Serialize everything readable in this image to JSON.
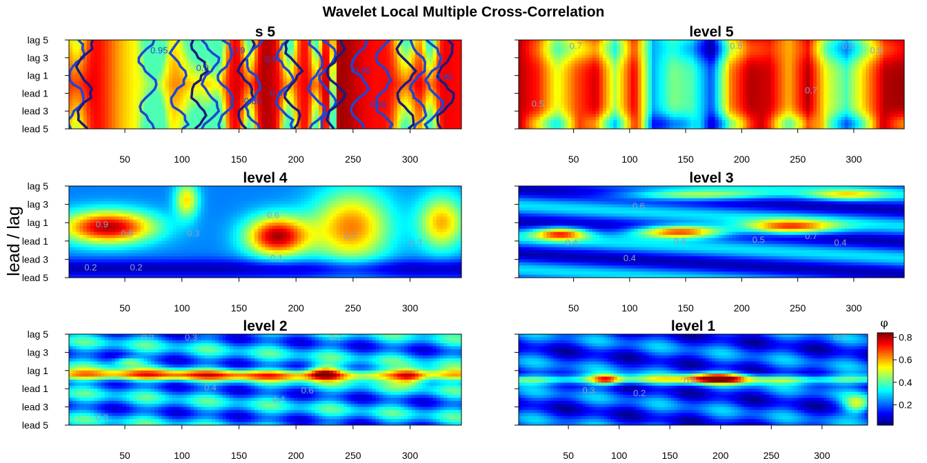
{
  "title": "Wavelet Local Multiple Cross-Correlation",
  "y_axis_label": "lead / lag",
  "legend": {
    "symbol": "φ",
    "ticks": [
      0.2,
      0.4,
      0.6,
      0.8
    ],
    "range": [
      0.02,
      0.84
    ],
    "colormap": [
      "#00007F",
      "#0000FF",
      "#007FFF",
      "#00FFFF",
      "#7FFF7F",
      "#FFFF00",
      "#FF7F00",
      "#FF0000",
      "#7F0000"
    ]
  },
  "chart_data": [
    {
      "type": "heatmap",
      "title": "s 5",
      "x_ticks": [
        50,
        100,
        150,
        200,
        250,
        300
      ],
      "xlim": [
        1,
        345
      ],
      "y_categories": [
        "lead 5",
        "lead 3",
        "lead 1",
        "lag 1",
        "lag 3",
        "lag 5"
      ],
      "value_range": [
        0.8,
        1.0
      ],
      "colormap": [
        "#FF0000",
        "#F4401C",
        "#F0A030",
        "#FF4000",
        "#D00000",
        "#A00000"
      ],
      "has_contours": true,
      "contour_color": "#1D47D4",
      "contour_labels": [
        {
          "text": "0.95",
          "x": 80,
          "lag": 3.5
        },
        {
          "text": "0.9",
          "x": 118,
          "lag": 1.5
        },
        {
          "text": "0.9",
          "x": 150,
          "lag": 3.5
        },
        {
          "text": "0.9",
          "x": 178,
          "lag": 2.5
        },
        {
          "text": "0.85",
          "x": 162,
          "lag": -2.2
        },
        {
          "text": "0.95",
          "x": 185,
          "lag": -1.3
        },
        {
          "text": "0.95",
          "x": 258,
          "lag": 1.2
        },
        {
          "text": "0.95",
          "x": 272,
          "lag": -2.6
        },
        {
          "text": "0.95",
          "x": 330,
          "lag": 0.5
        }
      ]
    },
    {
      "type": "heatmap",
      "title": "level 5",
      "x_ticks": [
        50,
        100,
        150,
        200,
        250,
        300
      ],
      "xlim": [
        1,
        345
      ],
      "y_categories": [
        "lead 5",
        "lead 3",
        "lead 1",
        "lag 1",
        "lag 3",
        "lag 5"
      ],
      "value_range": [
        0.0,
        1.0
      ],
      "has_contours": false,
      "contour_labels": [
        {
          "text": "0.7",
          "x": 52,
          "lag": 4
        },
        {
          "text": "0.8",
          "x": 195,
          "lag": 4
        },
        {
          "text": "0.7",
          "x": 262,
          "lag": -1
        },
        {
          "text": "0.8",
          "x": 295,
          "lag": 4
        },
        {
          "text": "0.9",
          "x": 320,
          "lag": 3.5
        },
        {
          "text": "0.5",
          "x": 18,
          "lag": -2.5
        }
      ]
    },
    {
      "type": "heatmap",
      "title": "level 4",
      "x_ticks": [
        50,
        100,
        150,
        200,
        250,
        300
      ],
      "xlim": [
        1,
        345
      ],
      "y_categories": [
        "lead 5",
        "lead 3",
        "lead 1",
        "lag 1",
        "lag 3",
        "lag 5"
      ],
      "value_range": [
        0.0,
        1.0
      ],
      "has_contours": false,
      "contour_labels": [
        {
          "text": "0.9",
          "x": 30,
          "lag": 0.5
        },
        {
          "text": "0.8",
          "x": 52,
          "lag": -0.5
        },
        {
          "text": "0.3",
          "x": 110,
          "lag": -0.5
        },
        {
          "text": "0.6",
          "x": 180,
          "lag": 1.5
        },
        {
          "text": "0.7",
          "x": 248,
          "lag": -0.8
        },
        {
          "text": "0.3",
          "x": 305,
          "lag": -1.5
        },
        {
          "text": "0.2",
          "x": 20,
          "lag": -4.2
        },
        {
          "text": "0.2",
          "x": 60,
          "lag": -4.2
        },
        {
          "text": "0.1",
          "x": 183,
          "lag": -3.2
        }
      ]
    },
    {
      "type": "heatmap",
      "title": "level 3",
      "x_ticks": [
        50,
        100,
        150,
        200,
        250,
        300
      ],
      "xlim": [
        1,
        345
      ],
      "y_categories": [
        "lead 5",
        "lead 3",
        "lead 1",
        "lag 1",
        "lag 3",
        "lag 5"
      ],
      "value_range": [
        0.0,
        0.9
      ],
      "has_contours": false,
      "contour_labels": [
        {
          "text": "0.6",
          "x": 108,
          "lag": 2.5
        },
        {
          "text": "0.4",
          "x": 48,
          "lag": -1.5
        },
        {
          "text": "0.4",
          "x": 100,
          "lag": -3.2
        },
        {
          "text": "0.6",
          "x": 145,
          "lag": -1.3
        },
        {
          "text": "0.5",
          "x": 215,
          "lag": -1.2
        },
        {
          "text": "0.7",
          "x": 262,
          "lag": -0.8
        },
        {
          "text": "0.4",
          "x": 288,
          "lag": -1.5
        }
      ]
    },
    {
      "type": "heatmap",
      "title": "level 2",
      "x_ticks": [
        50,
        100,
        150,
        200,
        250,
        300
      ],
      "xlim": [
        1,
        345
      ],
      "y_categories": [
        "lead 5",
        "lead 3",
        "lead 1",
        "lag 1",
        "lag 3",
        "lag 5"
      ],
      "value_range": [
        0.0,
        0.8
      ],
      "has_contours": false,
      "contour_labels": [
        {
          "text": "0.2",
          "x": 70,
          "lag": 4.3
        },
        {
          "text": "0.3",
          "x": 108,
          "lag": 4.3
        },
        {
          "text": "0.4",
          "x": 125,
          "lag": -1.2
        },
        {
          "text": "0.4",
          "x": 185,
          "lag": -2.5
        },
        {
          "text": "0.6",
          "x": 210,
          "lag": -1.5
        },
        {
          "text": "0.2",
          "x": 235,
          "lag": 4.3
        },
        {
          "text": "0.3",
          "x": 30,
          "lag": -4.5
        }
      ]
    },
    {
      "type": "heatmap",
      "title": "level 1",
      "x_ticks": [
        50,
        100,
        150,
        200,
        250,
        300
      ],
      "xlim": [
        1,
        345
      ],
      "y_categories": [
        "lead 5",
        "lead 3",
        "lead 1",
        "lag 1",
        "lag 3",
        "lag 5"
      ],
      "value_range": [
        0.0,
        0.84
      ],
      "has_contours": false,
      "contour_labels": [
        {
          "text": "0.2",
          "x": 120,
          "lag": -1.8
        },
        {
          "text": "0.6",
          "x": 170,
          "lag": -0.5
        },
        {
          "text": "0.2",
          "x": 318,
          "lag": 4.3
        },
        {
          "text": "0.3",
          "x": 70,
          "lag": -1.5
        }
      ]
    }
  ]
}
